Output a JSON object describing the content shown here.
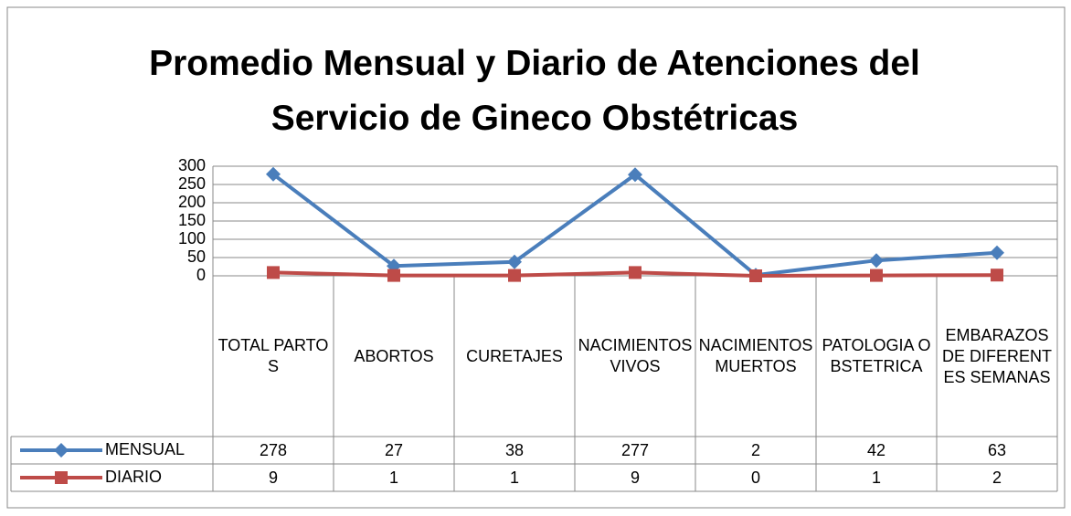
{
  "chart_data": {
    "type": "line",
    "title": "Promedio Mensual y Diario de Atenciones del Servicio de Gineco Obstétricas",
    "categories": [
      "TOTAL PARTOS",
      "ABORTOS",
      "CURETAJES",
      "NACIMIENTOS VIVOS",
      "NACIMIENTOS MUERTOS",
      "PATOLOGIA OBSTETRICA",
      "EMBARAZOS DE DIFERENTES SEMANAS"
    ],
    "series": [
      {
        "name": "MENSUAL",
        "color": "#4a7ebb",
        "marker": "diamond",
        "values": [
          278,
          27,
          38,
          277,
          2,
          42,
          63
        ]
      },
      {
        "name": "DIARIO",
        "color": "#be4b48",
        "marker": "square",
        "values": [
          9,
          1,
          1,
          9,
          0,
          1,
          2
        ]
      }
    ],
    "ylim": [
      0,
      300
    ],
    "yticks": [
      0,
      50,
      100,
      150,
      200,
      250,
      300
    ],
    "grid": true
  }
}
